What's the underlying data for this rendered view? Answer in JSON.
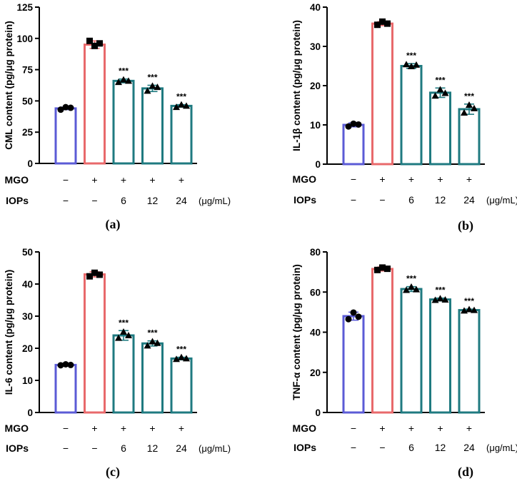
{
  "figure": {
    "groups": [
      {
        "mgo": "−",
        "iops": "−"
      },
      {
        "mgo": "+",
        "iops": "−"
      },
      {
        "mgo": "+",
        "iops": "6"
      },
      {
        "mgo": "+",
        "iops": "12"
      },
      {
        "mgo": "+",
        "iops": "24"
      }
    ],
    "mgo_label": "MGO",
    "iops_label": "IOPs",
    "unit": "(μg/mL)",
    "sig_label": "***",
    "colors": {
      "control": "#5b5bd6",
      "model": "#e8696b",
      "treatment": "#1f7a80",
      "model_points": "#000000"
    }
  },
  "chart_data": [
    {
      "type": "bar",
      "panel": "(a)",
      "ylabel": "CML content (pg/μg protein)",
      "ylim": [
        0,
        125
      ],
      "yticks": [
        0,
        25,
        50,
        75,
        100,
        125
      ],
      "values": [
        44,
        95,
        66,
        60,
        46
      ],
      "errors": [
        1,
        3,
        1.5,
        2.5,
        1
      ],
      "points": [
        [
          43,
          45,
          44.5
        ],
        [
          98,
          94,
          96
        ],
        [
          65,
          67,
          66
        ],
        [
          58,
          62,
          61
        ],
        [
          45,
          47,
          46
        ]
      ],
      "significance": [
        "",
        "",
        "***",
        "***",
        "***"
      ]
    },
    {
      "type": "bar",
      "panel": "(b)",
      "ylabel": "IL-1β content (pg/μg protein)",
      "ylim": [
        0,
        40
      ],
      "yticks": [
        0,
        10,
        20,
        30,
        40
      ],
      "values": [
        10,
        35.8,
        25,
        18.2,
        14
      ],
      "errors": [
        0.5,
        0.5,
        0.6,
        1.2,
        1.3
      ],
      "points": [
        [
          9.6,
          10.3,
          10.1
        ],
        [
          35.5,
          36.3,
          35.8
        ],
        [
          25.4,
          24.9,
          25.3
        ],
        [
          17.4,
          19,
          18.1
        ],
        [
          13.1,
          15.1,
          14.2
        ]
      ],
      "significance": [
        "",
        "",
        "***",
        "***",
        "***"
      ]
    },
    {
      "type": "bar",
      "panel": "(c)",
      "ylabel": "IL-6 content (pg/μg protein)",
      "ylim": [
        0,
        50
      ],
      "yticks": [
        0,
        10,
        20,
        30,
        40,
        50
      ],
      "values": [
        14.8,
        43,
        24,
        21.5,
        16.8
      ],
      "errors": [
        0.3,
        0.8,
        1.5,
        0.8,
        0.4
      ],
      "points": [
        [
          14.7,
          15,
          14.8
        ],
        [
          42.4,
          43.5,
          42.9
        ],
        [
          23.2,
          25.1,
          24
        ],
        [
          20.8,
          22.1,
          21.6
        ],
        [
          16.6,
          17.2,
          16.8
        ]
      ],
      "significance": [
        "",
        "",
        "***",
        "***",
        "***"
      ]
    },
    {
      "type": "bar",
      "panel": "(d)",
      "ylabel": "TNF-α content (pg/μg protein)",
      "ylim": [
        0,
        80
      ],
      "yticks": [
        0,
        20,
        40,
        60,
        80
      ],
      "values": [
        48,
        71.5,
        61.5,
        56.3,
        51
      ],
      "errors": [
        2,
        1,
        1.2,
        0.7,
        0.5
      ],
      "points": [
        [
          46.5,
          49.8,
          47.7
        ],
        [
          71,
          72.2,
          71.6
        ],
        [
          61,
          62.6,
          61.3
        ],
        [
          56,
          56.8,
          56.2
        ],
        [
          50.7,
          51.4,
          51
        ]
      ],
      "significance": [
        "",
        "",
        "***",
        "***",
        "***"
      ]
    }
  ]
}
